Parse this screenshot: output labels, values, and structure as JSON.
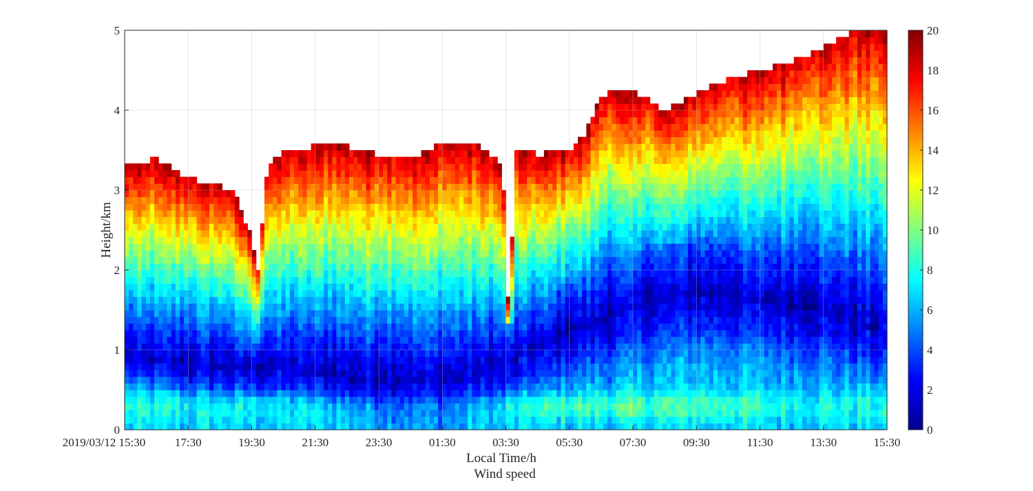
{
  "chart_data": {
    "type": "heatmap",
    "title": "",
    "caption": "Wind speed",
    "xlabel": "Local Time/h",
    "ylabel": "Height/km",
    "x_ticks": [
      "2019/03/12 15:30",
      "17:30",
      "19:30",
      "21:30",
      "23:30",
      "01:30",
      "03:30",
      "05:30",
      "07:30",
      "09:30",
      "11:30",
      "13:30",
      "15:30"
    ],
    "x_range_hours": [
      0,
      24
    ],
    "y_ticks": [
      "0",
      "1",
      "2",
      "3",
      "4",
      "5"
    ],
    "ylim": [
      0,
      5
    ],
    "colorbar": {
      "ticks": [
        "0",
        "2",
        "4",
        "6",
        "8",
        "10",
        "12",
        "14",
        "16",
        "18",
        "20"
      ],
      "range": [
        0,
        20
      ],
      "colormap": "jet"
    },
    "grid": true,
    "profile_description": {
      "data_top_km": [
        [
          0.0,
          3.3
        ],
        [
          1.0,
          3.4
        ],
        [
          2.0,
          3.15
        ],
        [
          3.0,
          3.05
        ],
        [
          3.5,
          2.95
        ],
        [
          4.0,
          2.4
        ],
        [
          4.2,
          2.0
        ],
        [
          4.5,
          3.3
        ],
        [
          5.0,
          3.5
        ],
        [
          6.0,
          3.55
        ],
        [
          7.0,
          3.55
        ],
        [
          8.0,
          3.45
        ],
        [
          9.0,
          3.4
        ],
        [
          10.0,
          3.6
        ],
        [
          11.0,
          3.6
        ],
        [
          11.9,
          3.3
        ],
        [
          12.1,
          1.3
        ],
        [
          12.3,
          3.5
        ],
        [
          13.0,
          3.45
        ],
        [
          14.0,
          3.5
        ],
        [
          14.5,
          3.7
        ],
        [
          15.0,
          4.2
        ],
        [
          16.0,
          4.25
        ],
        [
          17.0,
          4.0
        ],
        [
          18.0,
          4.2
        ],
        [
          19.0,
          4.4
        ],
        [
          20.0,
          4.5
        ],
        [
          21.0,
          4.6
        ],
        [
          22.0,
          4.8
        ],
        [
          23.0,
          5.0
        ],
        [
          24.0,
          5.0
        ]
      ],
      "low_speed_core_km": [
        [
          0.0,
          0.9
        ],
        [
          2.0,
          0.8
        ],
        [
          4.0,
          0.75
        ],
        [
          6.0,
          0.7
        ],
        [
          8.0,
          0.55
        ],
        [
          10.0,
          0.55
        ],
        [
          12.0,
          0.8
        ],
        [
          14.0,
          1.2
        ],
        [
          16.0,
          1.5
        ],
        [
          18.0,
          1.7
        ],
        [
          20.0,
          1.6
        ],
        [
          22.0,
          1.45
        ],
        [
          24.0,
          1.2
        ]
      ],
      "low_speed_core_width_km": [
        [
          0.0,
          0.5
        ],
        [
          6.0,
          0.6
        ],
        [
          12.0,
          1.0
        ],
        [
          16.0,
          1.4
        ],
        [
          20.0,
          1.4
        ],
        [
          24.0,
          1.2
        ]
      ]
    }
  }
}
